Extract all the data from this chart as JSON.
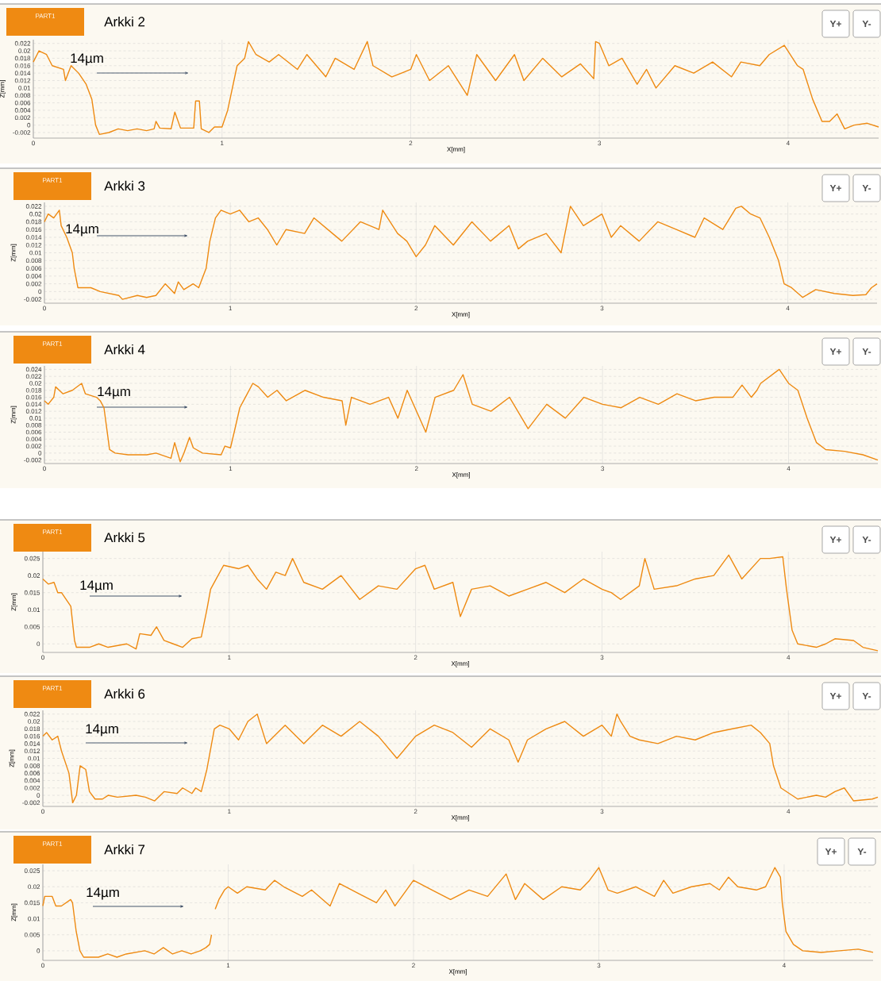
{
  "chart_data": [
    {
      "type": "line",
      "title": "Arkki 2",
      "xlabel": "X[mm]",
      "ylabel": "Z[mm]",
      "annotations": [
        "14µm",
        "PART1",
        "Y+",
        "Y-"
      ],
      "color": "#ee8a12",
      "grid": true,
      "xlim": [
        0,
        4.48
      ],
      "ylim": [
        -0.0035,
        0.023
      ],
      "xticks": [
        0,
        1,
        2,
        3,
        4
      ],
      "yticks": [
        -0.002,
        0,
        0.002,
        0.004,
        0.006,
        0.008,
        0.01,
        0.012,
        0.014,
        0.016,
        0.018,
        0.02,
        0.022
      ],
      "x": [
        0,
        0.03,
        0.07,
        0.1,
        0.16,
        0.17,
        0.2,
        0.24,
        0.28,
        0.31,
        0.33,
        0.35,
        0.4,
        0.45,
        0.5,
        0.55,
        0.6,
        0.64,
        0.65,
        0.67,
        0.73,
        0.75,
        0.78,
        0.85,
        0.86,
        0.88,
        0.89,
        0.93,
        0.96,
        1.0,
        1.03,
        1.08,
        1.12,
        1.14,
        1.18,
        1.25,
        1.3,
        1.4,
        1.45,
        1.55,
        1.6,
        1.7,
        1.77,
        1.8,
        1.9,
        2.0,
        2.03,
        2.1,
        2.2,
        2.3,
        2.35,
        2.45,
        2.55,
        2.6,
        2.7,
        2.8,
        2.9,
        2.97,
        2.98,
        3.0,
        3.05,
        3.12,
        3.2,
        3.25,
        3.3,
        3.4,
        3.5,
        3.6,
        3.7,
        3.75,
        3.85,
        3.9,
        3.98,
        4.05,
        4.08,
        4.13,
        4.18,
        4.22,
        4.26,
        4.3,
        4.35,
        4.42,
        4.48
      ],
      "values": [
        0.017,
        0.02,
        0.019,
        0.016,
        0.015,
        0.012,
        0.016,
        0.014,
        0.011,
        0.007,
        0,
        -0.0025,
        -0.002,
        -0.001,
        -0.0015,
        -0.001,
        -0.0015,
        -0.001,
        0.001,
        -0.0008,
        -0.001,
        0.0035,
        -0.0008,
        -0.0008,
        0.0065,
        0.0065,
        -0.001,
        -0.002,
        -0.0005,
        -0.0005,
        0.004,
        0.016,
        0.018,
        0.0225,
        0.019,
        0.017,
        0.019,
        0.015,
        0.019,
        0.013,
        0.018,
        0.015,
        0.0225,
        0.016,
        0.013,
        0.015,
        0.019,
        0.012,
        0.016,
        0.008,
        0.019,
        0.012,
        0.019,
        0.012,
        0.018,
        0.013,
        0.0165,
        0.0125,
        0.0225,
        0.022,
        0.016,
        0.018,
        0.011,
        0.015,
        0.01,
        0.016,
        0.014,
        0.017,
        0.013,
        0.017,
        0.016,
        0.019,
        0.0215,
        0.016,
        0.015,
        0.007,
        0.001,
        0.001,
        0.003,
        -0.001,
        0,
        0.0005,
        -0.0005
      ]
    },
    {
      "type": "line",
      "title": "Arkki 3",
      "xlabel": "X[mm]",
      "ylabel": "Z[mm]",
      "annotations": [
        "14µm",
        "PART1",
        "Y+",
        "Y-"
      ],
      "color": "#ee8a12",
      "grid": true,
      "xlim": [
        0,
        4.48
      ],
      "ylim": [
        -0.003,
        0.023
      ],
      "xticks": [
        0,
        1,
        2,
        3,
        4
      ],
      "yticks": [
        -0.002,
        0,
        0.002,
        0.004,
        0.006,
        0.008,
        0.01,
        0.012,
        0.014,
        0.016,
        0.018,
        0.02,
        0.022
      ],
      "x": [
        0,
        0.02,
        0.05,
        0.08,
        0.09,
        0.12,
        0.15,
        0.16,
        0.18,
        0.25,
        0.3,
        0.4,
        0.42,
        0.5,
        0.55,
        0.6,
        0.65,
        0.7,
        0.72,
        0.75,
        0.8,
        0.83,
        0.87,
        0.89,
        0.92,
        0.95,
        1.0,
        1.05,
        1.1,
        1.15,
        1.2,
        1.25,
        1.3,
        1.4,
        1.45,
        1.55,
        1.6,
        1.7,
        1.8,
        1.82,
        1.9,
        1.95,
        2.0,
        2.05,
        2.1,
        2.2,
        2.3,
        2.4,
        2.5,
        2.55,
        2.6,
        2.7,
        2.78,
        2.83,
        2.9,
        3.0,
        3.05,
        3.1,
        3.2,
        3.3,
        3.4,
        3.5,
        3.55,
        3.65,
        3.72,
        3.75,
        3.8,
        3.85,
        3.9,
        3.95,
        3.98,
        4.02,
        4.08,
        4.15,
        4.25,
        4.35,
        4.42,
        4.45,
        4.48
      ],
      "values": [
        0.018,
        0.02,
        0.019,
        0.021,
        0.017,
        0.014,
        0.01,
        0.006,
        0.001,
        0.001,
        0,
        -0.001,
        -0.002,
        -0.001,
        -0.0015,
        -0.001,
        0.002,
        -0.0005,
        0.0025,
        0.0005,
        0.002,
        0.001,
        0.006,
        0.013,
        0.019,
        0.021,
        0.02,
        0.021,
        0.018,
        0.019,
        0.016,
        0.012,
        0.016,
        0.015,
        0.019,
        0.015,
        0.013,
        0.018,
        0.016,
        0.021,
        0.015,
        0.013,
        0.009,
        0.012,
        0.017,
        0.012,
        0.018,
        0.013,
        0.017,
        0.011,
        0.013,
        0.015,
        0.01,
        0.022,
        0.017,
        0.02,
        0.014,
        0.017,
        0.013,
        0.018,
        0.016,
        0.014,
        0.019,
        0.016,
        0.0215,
        0.022,
        0.02,
        0.019,
        0.014,
        0.008,
        0.002,
        0.001,
        -0.0015,
        0.0005,
        -0.0005,
        -0.001,
        -0.0008,
        0.001,
        0.002
      ]
    },
    {
      "type": "line",
      "title": "Arkki 4",
      "xlabel": "X[mm]",
      "ylabel": "Z[mm]",
      "annotations": [
        "14µm",
        "PART1",
        "Y+",
        "Y-"
      ],
      "color": "#ee8a12",
      "grid": true,
      "xlim": [
        0,
        4.48
      ],
      "ylim": [
        -0.003,
        0.025
      ],
      "xticks": [
        0,
        1,
        2,
        3,
        4
      ],
      "yticks": [
        -0.002,
        0,
        0.002,
        0.004,
        0.006,
        0.008,
        0.01,
        0.012,
        0.014,
        0.016,
        0.018,
        0.02,
        0.022,
        0.024
      ],
      "x": [
        0,
        0.02,
        0.05,
        0.06,
        0.1,
        0.15,
        0.2,
        0.22,
        0.28,
        0.3,
        0.32,
        0.35,
        0.38,
        0.45,
        0.55,
        0.6,
        0.68,
        0.7,
        0.73,
        0.75,
        0.78,
        0.8,
        0.85,
        0.95,
        0.97,
        1.0,
        1.02,
        1.05,
        1.08,
        1.12,
        1.15,
        1.2,
        1.25,
        1.3,
        1.4,
        1.5,
        1.6,
        1.62,
        1.65,
        1.75,
        1.85,
        1.9,
        1.95,
        2.05,
        2.1,
        2.2,
        2.25,
        2.3,
        2.4,
        2.5,
        2.6,
        2.7,
        2.8,
        2.9,
        3.0,
        3.1,
        3.2,
        3.3,
        3.4,
        3.5,
        3.6,
        3.7,
        3.75,
        3.8,
        3.83,
        3.85,
        3.9,
        3.95,
        4.0,
        4.05,
        4.1,
        4.15,
        4.2,
        4.3,
        4.4,
        4.48
      ],
      "values": [
        0.015,
        0.014,
        0.016,
        0.019,
        0.017,
        0.018,
        0.02,
        0.017,
        0.016,
        0.015,
        0.013,
        0.001,
        0,
        -0.0005,
        -0.0005,
        0,
        -0.0015,
        0.003,
        -0.0025,
        0,
        0.0045,
        0.0015,
        0,
        -0.0005,
        0.002,
        0.0015,
        0.006,
        0.013,
        0.016,
        0.02,
        0.019,
        0.016,
        0.018,
        0.015,
        0.018,
        0.016,
        0.015,
        0.008,
        0.016,
        0.014,
        0.016,
        0.01,
        0.018,
        0.006,
        0.016,
        0.018,
        0.0225,
        0.014,
        0.012,
        0.016,
        0.007,
        0.014,
        0.01,
        0.016,
        0.014,
        0.013,
        0.016,
        0.014,
        0.017,
        0.015,
        0.016,
        0.016,
        0.0195,
        0.016,
        0.018,
        0.02,
        0.022,
        0.024,
        0.02,
        0.018,
        0.01,
        0.003,
        0.001,
        0.0005,
        -0.0005,
        -0.002
      ]
    },
    {
      "type": "line",
      "title": "Arkki 5",
      "xlabel": "X[mm]",
      "ylabel": "Z[mm]",
      "annotations": [
        "14µm",
        "PART1",
        "Y+",
        "Y-"
      ],
      "color": "#ee8a12",
      "grid": true,
      "xlim": [
        0,
        4.48
      ],
      "ylim": [
        -0.0025,
        0.027
      ],
      "xticks": [
        0,
        1,
        2,
        3,
        4
      ],
      "yticks": [
        0,
        0.005,
        0.01,
        0.015,
        0.02,
        0.025
      ],
      "x": [
        0,
        0.03,
        0.06,
        0.08,
        0.1,
        0.15,
        0.17,
        0.18,
        0.25,
        0.3,
        0.35,
        0.45,
        0.5,
        0.52,
        0.58,
        0.61,
        0.65,
        0.7,
        0.75,
        0.8,
        0.85,
        0.88,
        0.9,
        0.93,
        0.97,
        1.05,
        1.1,
        1.15,
        1.2,
        1.25,
        1.3,
        1.34,
        1.4,
        1.5,
        1.6,
        1.7,
        1.8,
        1.9,
        2.0,
        2.05,
        2.1,
        2.2,
        2.24,
        2.3,
        2.4,
        2.5,
        2.6,
        2.7,
        2.8,
        2.9,
        3.0,
        3.05,
        3.1,
        3.2,
        3.23,
        3.28,
        3.4,
        3.5,
        3.6,
        3.68,
        3.75,
        3.85,
        3.9,
        3.97,
        3.99,
        4.02,
        4.05,
        4.15,
        4.2,
        4.25,
        4.35,
        4.4,
        4.48
      ],
      "values": [
        0.019,
        0.0175,
        0.018,
        0.015,
        0.015,
        0.011,
        0.001,
        -0.001,
        -0.001,
        0,
        -0.001,
        0,
        -0.0015,
        0.003,
        0.0025,
        0.005,
        0.001,
        0,
        -0.001,
        0.0015,
        0.002,
        0.01,
        0.016,
        0.019,
        0.023,
        0.022,
        0.023,
        0.019,
        0.016,
        0.021,
        0.02,
        0.025,
        0.018,
        0.016,
        0.02,
        0.013,
        0.017,
        0.016,
        0.022,
        0.023,
        0.016,
        0.018,
        0.008,
        0.016,
        0.017,
        0.014,
        0.016,
        0.018,
        0.015,
        0.019,
        0.016,
        0.015,
        0.013,
        0.017,
        0.025,
        0.016,
        0.017,
        0.019,
        0.02,
        0.026,
        0.019,
        0.025,
        0.025,
        0.0255,
        0.016,
        0.004,
        0,
        -0.001,
        0,
        0.0015,
        0.001,
        -0.001,
        -0.002
      ]
    },
    {
      "type": "line",
      "title": "Arkki 6",
      "xlabel": "X[mm]",
      "ylabel": "Z[mm]",
      "annotations": [
        "14µm",
        "PART1",
        "Y+",
        "Y-"
      ],
      "color": "#ee8a12",
      "grid": true,
      "xlim": [
        0,
        4.48
      ],
      "ylim": [
        -0.003,
        0.023
      ],
      "xticks": [
        0,
        1,
        2,
        3,
        4
      ],
      "yticks": [
        -0.002,
        0,
        0.002,
        0.004,
        0.006,
        0.008,
        0.01,
        0.012,
        0.014,
        0.016,
        0.018,
        0.02,
        0.022
      ],
      "x": [
        0,
        0.02,
        0.05,
        0.08,
        0.1,
        0.12,
        0.14,
        0.16,
        0.18,
        0.2,
        0.23,
        0.25,
        0.28,
        0.32,
        0.35,
        0.4,
        0.5,
        0.55,
        0.6,
        0.65,
        0.72,
        0.75,
        0.8,
        0.82,
        0.85,
        0.88,
        0.92,
        0.95,
        1.0,
        1.05,
        1.1,
        1.15,
        1.2,
        1.3,
        1.4,
        1.5,
        1.6,
        1.7,
        1.8,
        1.9,
        2.0,
        2.1,
        2.2,
        2.3,
        2.4,
        2.5,
        2.55,
        2.6,
        2.7,
        2.8,
        2.9,
        3.0,
        3.05,
        3.08,
        3.1,
        3.15,
        3.2,
        3.3,
        3.4,
        3.5,
        3.6,
        3.7,
        3.8,
        3.85,
        3.9,
        3.92,
        3.96,
        4.05,
        4.15,
        4.2,
        4.25,
        4.3,
        4.35,
        4.45,
        4.48
      ],
      "values": [
        0.016,
        0.017,
        0.015,
        0.016,
        0.012,
        0.009,
        0.006,
        -0.002,
        0,
        0.008,
        0.007,
        0.001,
        -0.001,
        -0.001,
        0,
        -0.0005,
        0,
        -0.0005,
        -0.0015,
        0.001,
        0.0005,
        0.002,
        0.0005,
        0.002,
        0.001,
        0.007,
        0.018,
        0.019,
        0.018,
        0.015,
        0.02,
        0.022,
        0.014,
        0.019,
        0.014,
        0.019,
        0.016,
        0.02,
        0.016,
        0.01,
        0.016,
        0.019,
        0.017,
        0.013,
        0.018,
        0.015,
        0.009,
        0.015,
        0.018,
        0.02,
        0.016,
        0.019,
        0.016,
        0.022,
        0.02,
        0.016,
        0.015,
        0.014,
        0.016,
        0.015,
        0.017,
        0.018,
        0.019,
        0.017,
        0.014,
        0.008,
        0.002,
        -0.001,
        0,
        -0.0005,
        0.001,
        0.002,
        -0.0015,
        -0.001,
        -0.0005
      ]
    },
    {
      "type": "line",
      "title": "Arkki 7",
      "xlabel": "X[mm]",
      "ylabel": "Z[mm]",
      "annotations": [
        "14µm",
        "PART1",
        "Y+",
        "Y-"
      ],
      "color": "#ee8a12",
      "grid": true,
      "xlim": [
        0,
        4.48
      ],
      "ylim": [
        -0.003,
        0.027
      ],
      "xticks": [
        0,
        1,
        2,
        3,
        4
      ],
      "yticks": [
        0,
        0.005,
        0.01,
        0.015,
        0.02,
        0.025
      ],
      "x": [
        0,
        0.01,
        0.05,
        0.07,
        0.1,
        0.15,
        0.16,
        0.18,
        0.2,
        0.22,
        0.3,
        0.35,
        0.4,
        0.45,
        0.55,
        0.6,
        0.65,
        0.7,
        0.75,
        0.8,
        0.85,
        0.88,
        0.9,
        0.91,
        0.92,
        0.93,
        0.95,
        0.98,
        1.0,
        1.05,
        1.1,
        1.2,
        1.25,
        1.3,
        1.4,
        1.45,
        1.55,
        1.6,
        1.7,
        1.8,
        1.85,
        1.9,
        1.95,
        2.0,
        2.1,
        2.2,
        2.3,
        2.4,
        2.5,
        2.55,
        2.6,
        2.7,
        2.8,
        2.9,
        2.95,
        3.0,
        3.05,
        3.1,
        3.2,
        3.3,
        3.35,
        3.4,
        3.5,
        3.6,
        3.65,
        3.7,
        3.75,
        3.85,
        3.9,
        3.95,
        3.98,
        3.99,
        4.01,
        4.05,
        4.1,
        4.2,
        4.3,
        4.4,
        4.48
      ],
      "values": [
        0.014,
        0.017,
        0.017,
        0.014,
        0.014,
        0.016,
        0.015,
        0.006,
        0,
        -0.002,
        -0.002,
        -0.001,
        -0.002,
        -0.001,
        0,
        -0.001,
        0.001,
        -0.001,
        0,
        -0.001,
        0,
        0.001,
        0.002,
        0.005,
        null,
        0.013,
        0.016,
        0.019,
        0.02,
        0.018,
        0.02,
        0.019,
        0.022,
        0.02,
        0.017,
        0.019,
        0.014,
        0.021,
        0.018,
        0.015,
        0.019,
        0.014,
        0.018,
        0.022,
        0.019,
        0.016,
        0.019,
        0.017,
        0.024,
        0.016,
        0.021,
        0.016,
        0.02,
        0.019,
        0.022,
        0.026,
        0.019,
        0.018,
        0.02,
        0.017,
        0.022,
        0.018,
        0.02,
        0.021,
        0.019,
        0.023,
        0.02,
        0.019,
        0.02,
        0.026,
        0.023,
        0.015,
        0.006,
        0.002,
        0,
        -0.0005,
        0,
        0.0005,
        -0.0005
      ]
    }
  ]
}
